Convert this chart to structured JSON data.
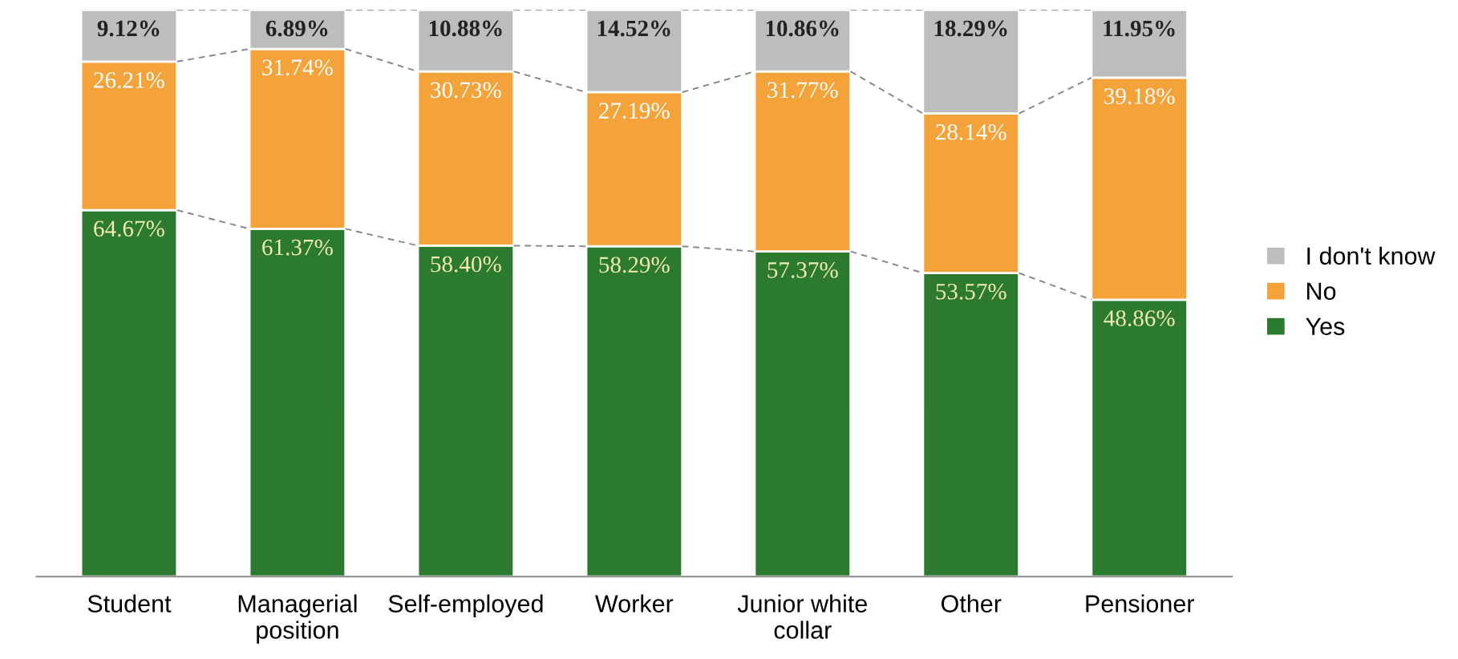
{
  "chart_data": {
    "type": "bar",
    "stacked": true,
    "ylim": [
      0,
      100
    ],
    "tick_labels": "x",
    "legend": "right",
    "line_style": "dashed",
    "categories": [
      "Student",
      "Managerial\nposition",
      "Self-employed",
      "Worker",
      "Junior white\ncollar",
      "Other",
      "Pensioner"
    ],
    "series": [
      {
        "name": "Yes",
        "color": "#2b7a2f",
        "values": [
          64.67,
          61.37,
          58.4,
          58.29,
          57.37,
          53.57,
          48.86
        ],
        "value_labels": [
          "64.67%",
          "61.37%",
          "58.40%",
          "58.29%",
          "57.37%",
          "53.57%",
          "48.86%"
        ]
      },
      {
        "name": "No",
        "color": "#f4a23a",
        "values": [
          26.21,
          31.74,
          30.73,
          27.19,
          31.77,
          28.14,
          39.18
        ],
        "value_labels": [
          "26.21%",
          "31.74%",
          "30.73%",
          "27.19%",
          "31.77%",
          "28.14%",
          "39.18%"
        ]
      },
      {
        "name": "I don't know",
        "color": "#bdbdbd",
        "values": [
          9.12,
          6.89,
          10.88,
          14.52,
          10.86,
          18.29,
          11.95
        ],
        "value_labels": [
          "9.12%",
          "6.89%",
          "10.88%",
          "14.52%",
          "10.86%",
          "18.29%",
          "11.95%"
        ]
      }
    ]
  }
}
